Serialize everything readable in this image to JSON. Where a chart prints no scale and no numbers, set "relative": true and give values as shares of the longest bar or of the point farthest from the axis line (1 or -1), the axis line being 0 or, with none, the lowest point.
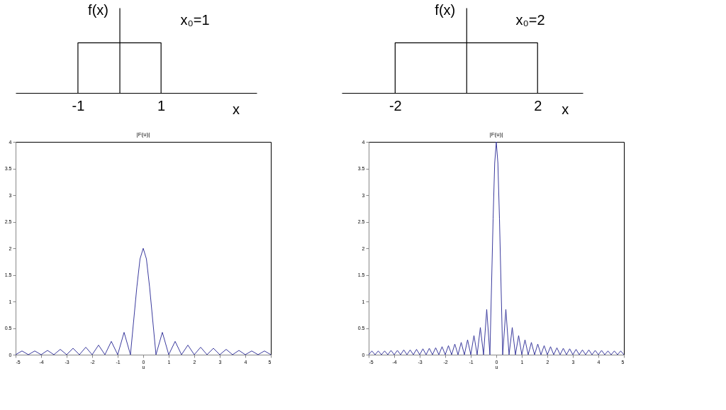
{
  "chart_data": [
    {
      "type": "line",
      "relative": true,
      "color": "#000000",
      "x": [
        -1,
        -1,
        1,
        1
      ],
      "values": [
        0,
        1,
        1,
        0
      ],
      "xlim": [
        -2.5,
        3.3
      ],
      "xticks": [
        -1,
        1
      ],
      "xlabel": "x",
      "ylabel": "f(x)",
      "annotations": [
        "x₀=1"
      ],
      "tick_labels": "x",
      "grid": false
    },
    {
      "type": "line",
      "relative": true,
      "color": "#000000",
      "x": [
        -2,
        -2,
        2,
        2
      ],
      "values": [
        0,
        1,
        1,
        0
      ],
      "xlim": [
        -3.5,
        3.27
      ],
      "xticks": [
        -2,
        2
      ],
      "xlabel": "x",
      "ylabel": "f(x)",
      "annotations": [
        "x₀=2"
      ],
      "tick_labels": "x",
      "grid": false
    },
    {
      "type": "line",
      "title": "|F(u)|",
      "xlabel": "u",
      "color": "#3b3b9e",
      "grid": false,
      "x": [
        -5,
        -4.75,
        -4.5,
        -4.25,
        -4,
        -3.75,
        -3.5,
        -3.25,
        -3,
        -2.75,
        -2.5,
        -2.25,
        -2,
        -1.75,
        -1.5,
        -1.25,
        -1,
        -0.75,
        -0.5,
        -0.25,
        -0.125,
        0,
        0.125,
        0.25,
        0.5,
        0.75,
        1,
        1.25,
        1.5,
        1.75,
        2,
        2.25,
        2.5,
        2.75,
        3,
        3.25,
        3.5,
        3.75,
        4,
        4.25,
        4.5,
        4.75,
        5
      ],
      "values": [
        0,
        0.07,
        0,
        0.07,
        0,
        0.08,
        0,
        0.1,
        0,
        0.12,
        0,
        0.14,
        0,
        0.18,
        0,
        0.25,
        0,
        0.42,
        0,
        1.27,
        1.8,
        2,
        1.8,
        1.27,
        0,
        0.42,
        0,
        0.25,
        0,
        0.18,
        0,
        0.14,
        0,
        0.12,
        0,
        0.1,
        0,
        0.08,
        0,
        0.07,
        0,
        0.07,
        0
      ],
      "xlim": [
        -5,
        5
      ],
      "xticks": [
        -5,
        -4,
        -3,
        -2,
        -1,
        0,
        1,
        2,
        3,
        4,
        5
      ],
      "ylim": [
        0,
        4
      ],
      "yticks": [
        0,
        0.5,
        1,
        1.5,
        2,
        2.5,
        3,
        3.5,
        4
      ]
    },
    {
      "type": "line",
      "title": "|F(u)|",
      "xlabel": "u",
      "color": "#3b3b9e",
      "grid": false,
      "x": [
        -5,
        -4.875,
        -4.75,
        -4.625,
        -4.5,
        -4.375,
        -4.25,
        -4.125,
        -4,
        -3.875,
        -3.75,
        -3.625,
        -3.5,
        -3.375,
        -3.25,
        -3.125,
        -3,
        -2.875,
        -2.75,
        -2.625,
        -2.5,
        -2.375,
        -2.25,
        -2.125,
        -2,
        -1.875,
        -1.75,
        -1.625,
        -1.5,
        -1.375,
        -1.25,
        -1.125,
        -1,
        -0.875,
        -0.75,
        -0.625,
        -0.5,
        -0.375,
        -0.25,
        -0.125,
        -0.0625,
        0,
        0.0625,
        0.125,
        0.25,
        0.375,
        0.5,
        0.625,
        0.75,
        0.875,
        1,
        1.125,
        1.25,
        1.375,
        1.5,
        1.625,
        1.75,
        1.875,
        2,
        2.125,
        2.25,
        2.375,
        2.5,
        2.625,
        2.75,
        2.875,
        3,
        3.125,
        3.25,
        3.375,
        3.5,
        3.625,
        3.75,
        3.875,
        4,
        4.125,
        4.25,
        4.375,
        4.5,
        4.625,
        4.75,
        4.875,
        5
      ],
      "values": [
        0,
        0.07,
        0,
        0.07,
        0,
        0.07,
        0,
        0.08,
        0,
        0.08,
        0,
        0.09,
        0,
        0.09,
        0,
        0.1,
        0,
        0.11,
        0,
        0.12,
        0,
        0.13,
        0,
        0.15,
        0,
        0.17,
        0,
        0.2,
        0,
        0.23,
        0,
        0.28,
        0,
        0.36,
        0,
        0.51,
        0,
        0.85,
        0,
        2.55,
        3.6,
        4,
        3.6,
        2.55,
        0,
        0.85,
        0,
        0.51,
        0,
        0.36,
        0,
        0.28,
        0,
        0.23,
        0,
        0.2,
        0,
        0.17,
        0,
        0.15,
        0,
        0.13,
        0,
        0.12,
        0,
        0.11,
        0,
        0.1,
        0,
        0.09,
        0,
        0.09,
        0,
        0.08,
        0,
        0.08,
        0,
        0.07,
        0,
        0.07,
        0,
        0.07,
        0
      ],
      "xlim": [
        -5,
        5
      ],
      "xticks": [
        -5,
        -4,
        -3,
        -2,
        -1,
        0,
        1,
        2,
        3,
        4,
        5
      ],
      "ylim": [
        0,
        4
      ],
      "yticks": [
        0,
        0.5,
        1,
        1.5,
        2,
        2.5,
        3,
        3.5,
        4
      ]
    }
  ]
}
